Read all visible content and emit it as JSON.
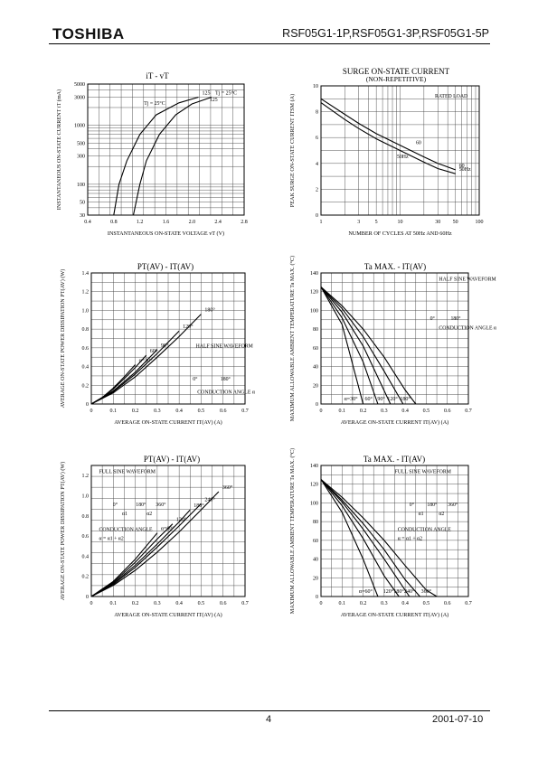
{
  "header": {
    "brand": "TOSHIBA",
    "part_numbers": "RSF05G1-1P,RSF05G1-3P,RSF05G1-5P"
  },
  "footer": {
    "page": "4",
    "date": "2001-07-10"
  },
  "chart_data": [
    {
      "id": "c1",
      "type": "line",
      "title": "iT - vT",
      "xlabel": "INSTANTANEOUS ON-STATE VOLTAGE  vT (V)",
      "ylabel": "INSTANTANEOUS ON-STATE CURRENT  iT (mA)",
      "x_ticks": [
        "0.4",
        "0.8",
        "1.2",
        "1.6",
        "2.0",
        "2.4",
        "2.8"
      ],
      "y_ticks": [
        "5000",
        "3000",
        "1000",
        "500",
        "300",
        "100",
        "50",
        "30"
      ],
      "xlim": [
        0.4,
        2.8
      ],
      "ylim": [
        30,
        5000
      ],
      "yscale": "log",
      "annotations": [
        "Tj = 25°C",
        "125"
      ],
      "series": [
        {
          "name": "Tj = 25°C",
          "x": [
            1.1,
            1.2,
            1.3,
            1.5,
            1.75,
            2.0,
            2.3
          ],
          "y": [
            30,
            100,
            250,
            700,
            1500,
            2300,
            3000
          ]
        },
        {
          "name": "125",
          "x": [
            0.8,
            0.88,
            1.0,
            1.2,
            1.45,
            1.8,
            2.1
          ],
          "y": [
            30,
            100,
            250,
            700,
            1500,
            2400,
            3000
          ]
        }
      ]
    },
    {
      "id": "c2",
      "type": "line",
      "title": "SURGE ON-STATE CURRENT",
      "subtitle": "(NON-REPETITIVE)",
      "xlabel": "NUMBER OF CYCLES AT 50Hz AND 60Hz",
      "ylabel": "PEAK SURGE ON-STATE CURRENT  ITSM (A)",
      "x_ticks": [
        "1",
        "3",
        "5",
        "10",
        "30",
        "50",
        "100"
      ],
      "y_ticks": [
        "0",
        "2",
        "4",
        "6",
        "8",
        "10"
      ],
      "xlim": [
        1,
        100
      ],
      "ylim": [
        0,
        10
      ],
      "xscale": "log",
      "annotations": [
        "RATED LOAD",
        "60",
        "50Hz"
      ],
      "series": [
        {
          "name": "60",
          "x": [
            1,
            2,
            3,
            5,
            10,
            20,
            30,
            50
          ],
          "y": [
            9.0,
            7.8,
            7.1,
            6.3,
            5.4,
            4.5,
            4.0,
            3.5
          ]
        },
        {
          "name": "50Hz",
          "x": [
            1,
            2,
            3,
            5,
            10,
            20,
            30,
            50
          ],
          "y": [
            8.7,
            7.4,
            6.7,
            5.9,
            5.0,
            4.1,
            3.6,
            3.2
          ]
        }
      ]
    },
    {
      "id": "c3",
      "type": "line",
      "title": "PT(AV) - IT(AV)",
      "xlabel": "AVERAGE ON-STATE CURRENT  IT(AV) (A)",
      "ylabel": "AVERAGE ON-STATE POWER DISSIPATION PT(AV) (W)",
      "x_ticks": [
        "0",
        "0.1",
        "0.2",
        "0.3",
        "0.4",
        "0.5",
        "0.6",
        "0.7"
      ],
      "y_ticks": [
        "0",
        "0.2",
        "0.4",
        "0.6",
        "0.8",
        "1.0",
        "1.2",
        "1.4"
      ],
      "xlim": [
        0,
        0.7
      ],
      "ylim": [
        0,
        1.4
      ],
      "annotations": [
        "HALF SINE WAVEFORM",
        "CONDUCTION ANGLE α",
        "0°",
        "180°"
      ],
      "series": [
        {
          "name": "α=30°",
          "x": [
            0,
            0.05,
            0.1,
            0.15,
            0.2
          ],
          "y": [
            0,
            0.07,
            0.17,
            0.29,
            0.42
          ]
        },
        {
          "name": "60°",
          "x": [
            0,
            0.05,
            0.1,
            0.15,
            0.2,
            0.25
          ],
          "y": [
            0,
            0.07,
            0.16,
            0.27,
            0.39,
            0.52
          ]
        },
        {
          "name": "90°",
          "x": [
            0,
            0.1,
            0.2,
            0.3
          ],
          "y": [
            0,
            0.14,
            0.34,
            0.58
          ]
        },
        {
          "name": "120°",
          "x": [
            0,
            0.1,
            0.2,
            0.3,
            0.4
          ],
          "y": [
            0,
            0.13,
            0.32,
            0.54,
            0.78
          ]
        },
        {
          "name": "180°",
          "x": [
            0,
            0.1,
            0.2,
            0.3,
            0.4,
            0.5
          ],
          "y": [
            0,
            0.12,
            0.29,
            0.5,
            0.72,
            0.96
          ]
        }
      ]
    },
    {
      "id": "c4",
      "type": "line",
      "title": "Ta MAX. - IT(AV)",
      "xlabel": "AVERAGE ON-STATE CURRENT  IT(AV) (A)",
      "ylabel": "MAXIMUM ALLOWABLE AMBIENT TEMPERATURE Ta MAX. (°C)",
      "x_ticks": [
        "0",
        "0.1",
        "0.2",
        "0.3",
        "0.4",
        "0.5",
        "0.6",
        "0.7"
      ],
      "y_ticks": [
        "0",
        "20",
        "40",
        "60",
        "80",
        "100",
        "120",
        "140"
      ],
      "xlim": [
        0,
        0.7
      ],
      "ylim": [
        0,
        140
      ],
      "annotations": [
        "HALF SINE WAVEFORM",
        "CONDUCTION ANGLE α",
        "0°",
        "180°"
      ],
      "series": [
        {
          "name": "α=30°",
          "x": [
            0,
            0.1,
            0.2
          ],
          "y": [
            125,
            85,
            0
          ]
        },
        {
          "name": "60°",
          "x": [
            0,
            0.1,
            0.2,
            0.27
          ],
          "y": [
            125,
            92,
            45,
            0
          ]
        },
        {
          "name": "90°",
          "x": [
            0,
            0.1,
            0.2,
            0.33
          ],
          "y": [
            125,
            98,
            62,
            0
          ]
        },
        {
          "name": "120°",
          "x": [
            0,
            0.1,
            0.2,
            0.3,
            0.39
          ],
          "y": [
            125,
            102,
            72,
            35,
            0
          ]
        },
        {
          "name": "180°",
          "x": [
            0,
            0.1,
            0.2,
            0.3,
            0.4,
            0.45
          ],
          "y": [
            125,
            105,
            80,
            50,
            15,
            0
          ]
        }
      ]
    },
    {
      "id": "c5",
      "type": "line",
      "title": "PT(AV) - IT(AV)",
      "xlabel": "AVERAGE ON-STATE CURRENT  IT(AV) (A)",
      "ylabel": "AVERAGE ON-STATE POWER DISSIPATION PT(AV) (W)",
      "x_ticks": [
        "0",
        "0.1",
        "0.2",
        "0.3",
        "0.4",
        "0.5",
        "0.6",
        "0.7"
      ],
      "y_ticks": [
        "0",
        "0.2",
        "0.4",
        "0.6",
        "0.8",
        "1.0",
        "1.2"
      ],
      "xlim": [
        0,
        0.7
      ],
      "ylim": [
        0,
        1.3
      ],
      "annotations": [
        "FULL SINE WAVEFORM",
        "CONDUCTION ANGLE",
        "α = α1 + α2",
        "0°",
        "180°",
        "360°",
        "α1",
        "α2"
      ],
      "series": [
        {
          "name": "α=60°",
          "x": [
            0,
            0.1,
            0.2,
            0.3
          ],
          "y": [
            0,
            0.15,
            0.37,
            0.63
          ]
        },
        {
          "name": "120°",
          "x": [
            0,
            0.1,
            0.2,
            0.3,
            0.37
          ],
          "y": [
            0,
            0.14,
            0.34,
            0.57,
            0.72
          ]
        },
        {
          "name": "180°",
          "x": [
            0,
            0.1,
            0.2,
            0.3,
            0.4,
            0.45
          ],
          "y": [
            0,
            0.13,
            0.31,
            0.52,
            0.74,
            0.86
          ]
        },
        {
          "name": "240°",
          "x": [
            0,
            0.1,
            0.2,
            0.3,
            0.4,
            0.5
          ],
          "y": [
            0,
            0.12,
            0.29,
            0.49,
            0.7,
            0.92
          ]
        },
        {
          "name": "360°",
          "x": [
            0,
            0.1,
            0.2,
            0.3,
            0.4,
            0.5,
            0.58
          ],
          "y": [
            0,
            0.11,
            0.26,
            0.44,
            0.64,
            0.86,
            1.04
          ]
        }
      ]
    },
    {
      "id": "c6",
      "type": "line",
      "title": "Ta MAX. - IT(AV)",
      "xlabel": "AVERAGE ON-STATE CURRENT  IT(AV) (A)",
      "ylabel": "MAXIMUM ALLOWABLE AMBIENT TEMPERATURE Ta MAX. (°C)",
      "x_ticks": [
        "0",
        "0.1",
        "0.2",
        "0.3",
        "0.4",
        "0.5",
        "0.6",
        "0.7"
      ],
      "y_ticks": [
        "0",
        "20",
        "40",
        "60",
        "80",
        "100",
        "120",
        "140"
      ],
      "xlim": [
        0,
        0.7
      ],
      "ylim": [
        0,
        140
      ],
      "annotations": [
        "FULL SINE WAVEFORM",
        "CONDUCTION ANGLE",
        "α = α1 + α2",
        "0°",
        "180°",
        "360°",
        "α1",
        "α2"
      ],
      "series": [
        {
          "name": "α=60°",
          "x": [
            0,
            0.1,
            0.2,
            0.27
          ],
          "y": [
            125,
            90,
            40,
            0
          ]
        },
        {
          "name": "120°",
          "x": [
            0,
            0.1,
            0.2,
            0.3,
            0.37
          ],
          "y": [
            125,
            97,
            62,
            22,
            0
          ]
        },
        {
          "name": "180°",
          "x": [
            0,
            0.1,
            0.2,
            0.3,
            0.42
          ],
          "y": [
            125,
            101,
            72,
            40,
            0
          ]
        },
        {
          "name": "240°",
          "x": [
            0,
            0.1,
            0.2,
            0.3,
            0.4,
            0.47
          ],
          "y": [
            125,
            103,
            78,
            50,
            18,
            0
          ]
        },
        {
          "name": "360°",
          "x": [
            0,
            0.1,
            0.2,
            0.3,
            0.4,
            0.5,
            0.55
          ],
          "y": [
            125,
            106,
            84,
            60,
            33,
            7,
            0
          ]
        }
      ]
    }
  ]
}
